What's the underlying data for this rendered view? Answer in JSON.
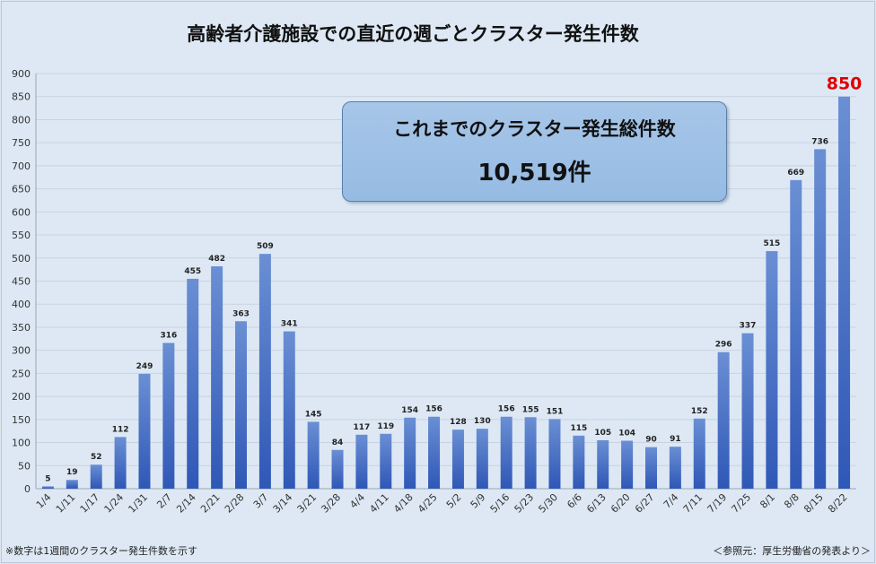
{
  "title": "高齢者介護施設での直近の週ごとクラスター発生件数",
  "info_box": {
    "title": "これまでのクラスター発生総件数",
    "value": "10,519件"
  },
  "footnote": "※数字は1週間のクラスター発生件数を示す",
  "source": "＜参照元：厚生労働省の発表より＞",
  "colors": {
    "bar_top": "#6a8fd4",
    "bar_bottom": "#2f57b6",
    "highlight_label": "#e00000"
  },
  "chart_data": {
    "type": "bar",
    "title": "高齢者介護施設での直近の週ごとクラスター発生件数",
    "xlabel": "",
    "ylabel": "",
    "ylim": [
      0,
      900
    ],
    "yticks": [
      0,
      50,
      100,
      150,
      200,
      250,
      300,
      350,
      400,
      450,
      500,
      550,
      600,
      650,
      700,
      750,
      800,
      850,
      900
    ],
    "grid": true,
    "categories": [
      "1/4",
      "1/11",
      "1/17",
      "1/24",
      "1/31",
      "2/7",
      "2/14",
      "2/21",
      "2/28",
      "3/7",
      "3/14",
      "3/21",
      "3/28",
      "4/4",
      "4/11",
      "4/18",
      "4/25",
      "5/2",
      "5/9",
      "5/16",
      "5/23",
      "5/30",
      "6/6",
      "6/13",
      "6/20",
      "6/27",
      "7/4",
      "7/11",
      "7/19",
      "7/25",
      "8/1",
      "8/8",
      "8/15",
      "8/22"
    ],
    "values": [
      5,
      19,
      52,
      112,
      249,
      316,
      455,
      482,
      363,
      509,
      341,
      145,
      84,
      117,
      119,
      154,
      156,
      128,
      130,
      156,
      155,
      151,
      115,
      105,
      104,
      90,
      91,
      152,
      296,
      337,
      515,
      669,
      736,
      850
    ],
    "highlight_index": 33
  }
}
